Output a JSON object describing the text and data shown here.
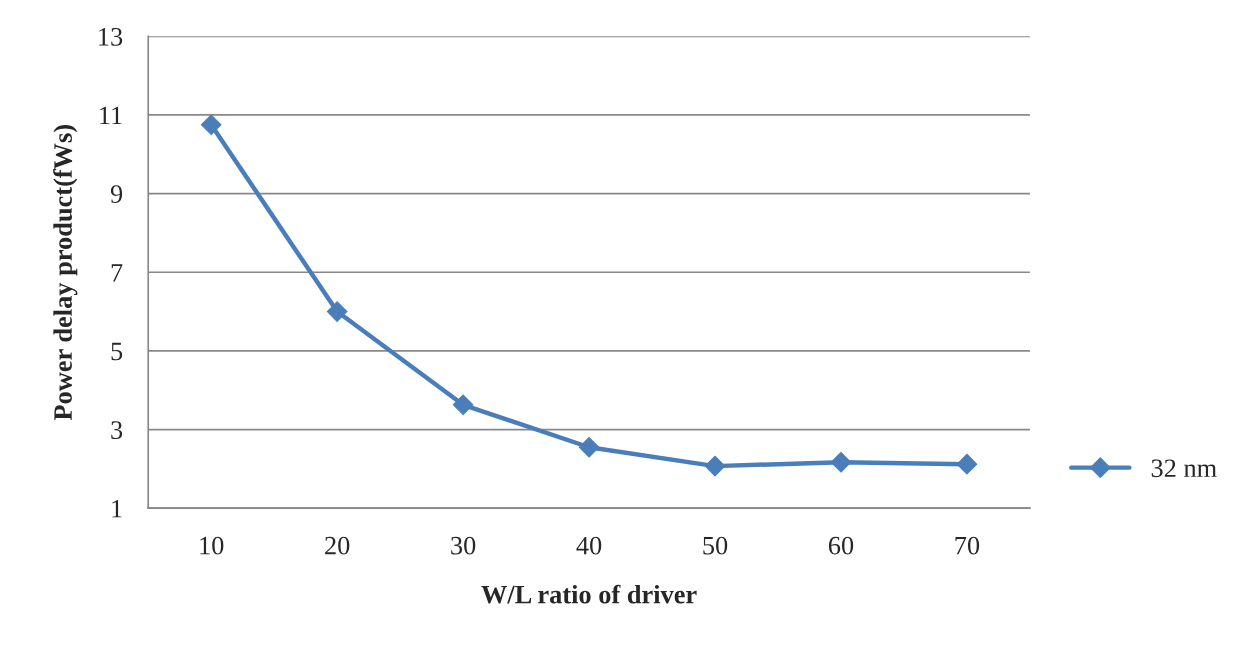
{
  "chart_data": {
    "type": "line",
    "xlabel": "W/L ratio of driver",
    "ylabel": "Power delay product(fWs)",
    "categories": [
      "10",
      "20",
      "30",
      "40",
      "50",
      "60",
      "70"
    ],
    "series": [
      {
        "name": "32 nm",
        "color": "#4a7ebb",
        "values": [
          10.75,
          6.0,
          3.63,
          2.55,
          2.07,
          2.17,
          2.12
        ]
      }
    ],
    "ylim": [
      1,
      13
    ],
    "yticks": [
      1,
      3,
      5,
      7,
      9,
      11,
      13
    ],
    "grid": "y",
    "legend": "right",
    "marker": "diamond",
    "line_style": "solid"
  }
}
